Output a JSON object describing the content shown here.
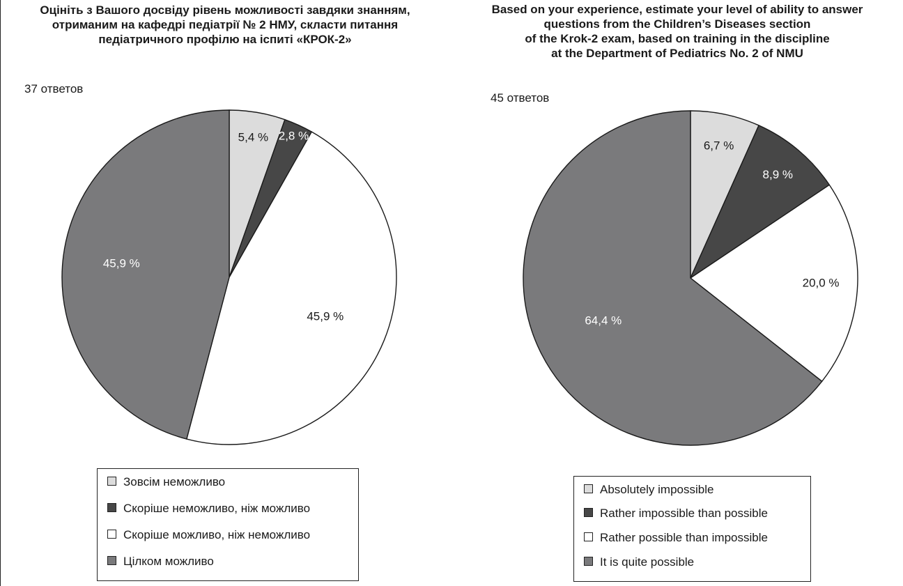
{
  "chart_data": [
    {
      "type": "pie",
      "title": "Оцініть з Вашого досвіду рівень можливості завдяки знанням, отриманим на кафедрі педіатрії № 2 НМУ, скласти питання педіатричного профілю на іспиті «КРОК-2»",
      "title_lines": [
        "Оцініть з Вашого досвіду рівень можливості завдяки знанням,",
        "отриманим на кафедрі педіатрії № 2 НМУ, скласти питання",
        "педіатричного профілю на іспиті «КРОК-2»"
      ],
      "responses_label": "37 ответов",
      "categories": [
        "Зовсім неможливо",
        "Скоріше неможливо, ніж можливо",
        "Скоріше можливо, ніж неможливо",
        "Цілком можливо"
      ],
      "values": [
        5.4,
        2.8,
        45.9,
        45.9
      ],
      "value_labels": [
        "5,4 %",
        "2,8 %",
        "45,9 %",
        "45,9 %"
      ],
      "colors": [
        "#dcdcdc",
        "#474747",
        "#ffffff",
        "#7a7a7c"
      ],
      "legend_position": "bottom"
    },
    {
      "type": "pie",
      "title": "Based on your experience, estimate your level of ability to answer questions from the Children's Diseases section of the Krok-2 exam, based on training in the discipline at the Department of Pediatrics No. 2 of NMU",
      "title_lines": [
        "Based on your experience, estimate your level of ability to answer",
        "questions from the Children’s Diseases section",
        "of the Krok-2 exam, based on training in the discipline",
        "at the Department of Pediatrics No. 2 of NMU"
      ],
      "responses_label": "45 ответов",
      "categories": [
        "Absolutely impossible",
        "Rather impossible than possible",
        "Rather possible than impossible",
        "It is quite possible"
      ],
      "values": [
        6.7,
        8.9,
        20.0,
        64.4
      ],
      "value_labels": [
        "6,7 %",
        "8,9 %",
        "20,0 %",
        "64,4 %"
      ],
      "colors": [
        "#dcdcdc",
        "#474747",
        "#ffffff",
        "#7a7a7c"
      ],
      "legend_position": "bottom"
    }
  ]
}
